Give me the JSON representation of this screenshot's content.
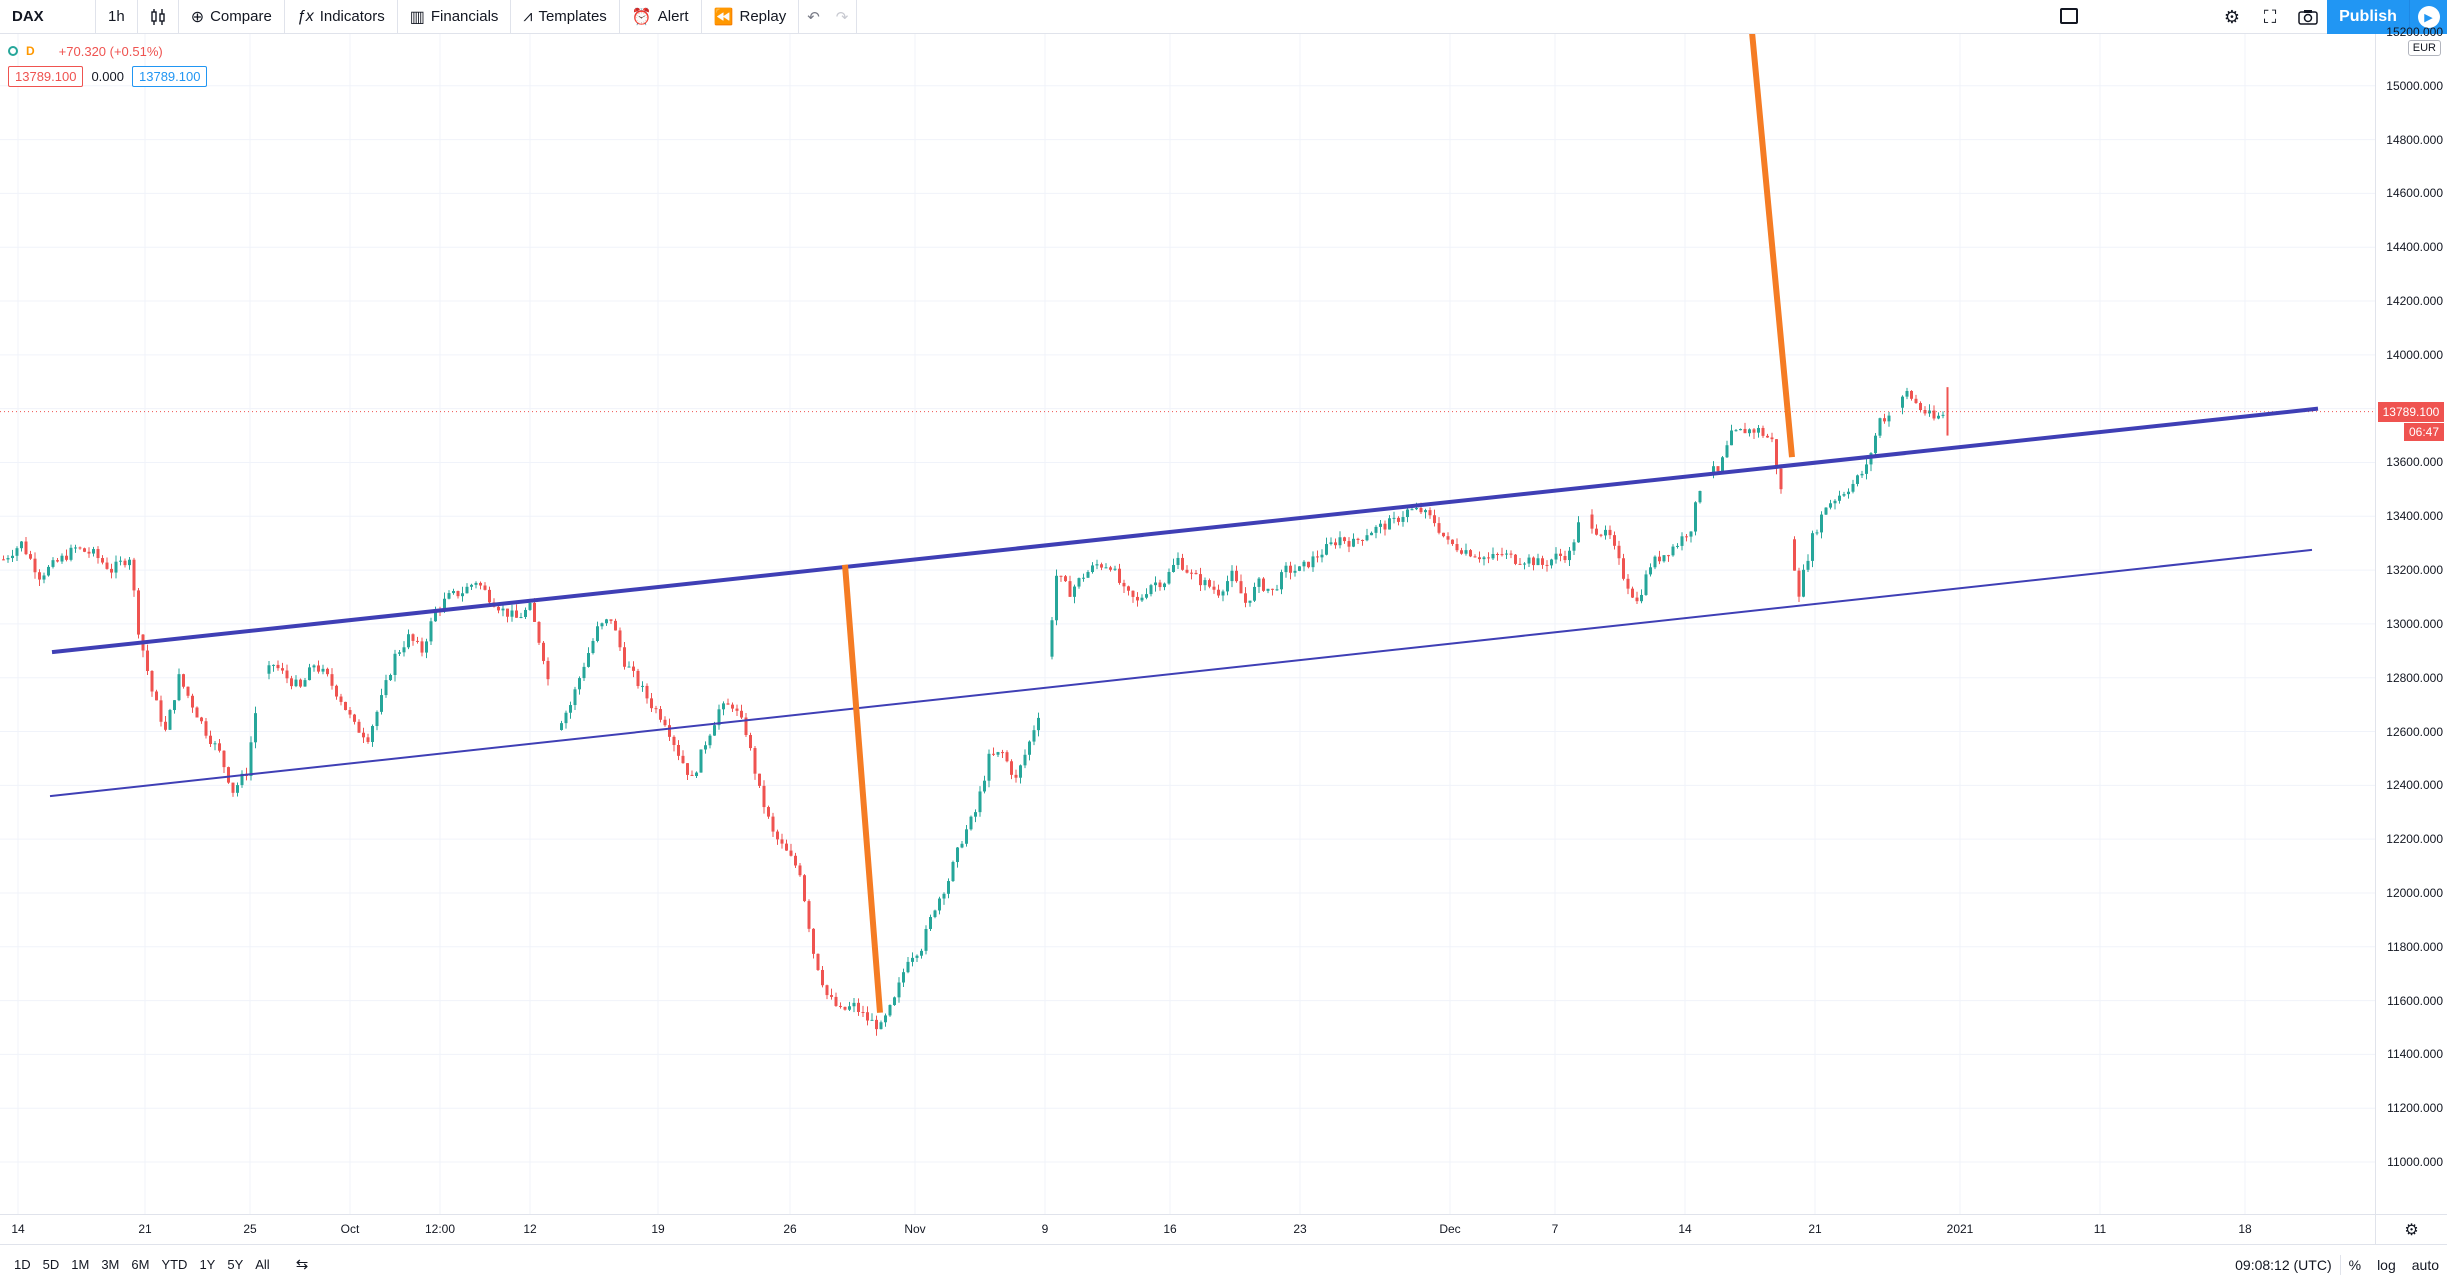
{
  "topbar": {
    "symbol": "DAX",
    "interval": "1h",
    "compare": "Compare",
    "indicators": "Indicators",
    "financials": "Financials",
    "templates": "Templates",
    "alert": "Alert",
    "replay": "Replay",
    "publish": "Publish"
  },
  "legend": {
    "interval_badge": "D",
    "change": "+70.320 (+0.51%)",
    "bid": "13789.100",
    "spread": "0.000",
    "ask": "13789.100"
  },
  "price_axis": {
    "currency": "EUR",
    "current_price": "13789.100",
    "countdown": "06:47",
    "labels": [
      "15200.000",
      "15000.000",
      "14800.000",
      "14600.000",
      "14400.000",
      "14200.000",
      "14000.000",
      "13800.000",
      "13600.000",
      "13400.000",
      "13200.000",
      "13000.000",
      "12800.000",
      "12600.000",
      "12400.000",
      "12200.000",
      "12000.000",
      "11800.000",
      "11600.000",
      "11400.000",
      "11200.000",
      "11000.000"
    ]
  },
  "time_axis": {
    "labels": [
      "14",
      "21",
      "25",
      "Oct",
      "12:00",
      "12",
      "19",
      "26",
      "Nov",
      "9",
      "16",
      "23",
      "Dec",
      "7",
      "14",
      "21",
      "2021",
      "11",
      "18"
    ]
  },
  "bottombar": {
    "ranges": [
      "1D",
      "5D",
      "1M",
      "3M",
      "6M",
      "YTD",
      "1Y",
      "5Y",
      "All"
    ],
    "clock": "09:08:12 (UTC)",
    "percent": "%",
    "log": "log",
    "auto": "auto"
  },
  "colors": {
    "up": "#26a69a",
    "down": "#ef5350",
    "trendline": "#3f3fb5",
    "measure": "#f57c24",
    "accent": "#2196f3"
  },
  "chart_data": {
    "type": "candlestick",
    "symbol": "DAX",
    "ylim": [
      11000,
      15200
    ],
    "current_price": 13789.1,
    "close_path": [
      [
        0,
        13240
      ],
      [
        4,
        13300
      ],
      [
        8,
        13180
      ],
      [
        12,
        13230
      ],
      [
        16,
        13280
      ],
      [
        20,
        13260
      ],
      [
        24,
        13200
      ],
      [
        28,
        13250
      ],
      [
        30,
        12980
      ],
      [
        33,
        12750
      ],
      [
        36,
        12600
      ],
      [
        39,
        12800
      ],
      [
        42,
        12700
      ],
      [
        45,
        12600
      ],
      [
        48,
        12520
      ],
      [
        51,
        12380
      ],
      [
        54,
        12450
      ],
      [
        57,
        12780
      ],
      [
        60,
        12850
      ],
      [
        63,
        12800
      ],
      [
        66,
        12760
      ],
      [
        69,
        12850
      ],
      [
        72,
        12800
      ],
      [
        75,
        12720
      ],
      [
        78,
        12620
      ],
      [
        81,
        12580
      ],
      [
        84,
        12720
      ],
      [
        87,
        12880
      ],
      [
        90,
        12950
      ],
      [
        93,
        12900
      ],
      [
        96,
        13050
      ],
      [
        99,
        13100
      ],
      [
        102,
        13120
      ],
      [
        105,
        13160
      ],
      [
        108,
        13100
      ],
      [
        111,
        13050
      ],
      [
        114,
        13020
      ],
      [
        117,
        13060
      ],
      [
        120,
        12880
      ],
      [
        123,
        12620
      ],
      [
        126,
        12700
      ],
      [
        129,
        12850
      ],
      [
        132,
        12980
      ],
      [
        135,
        13020
      ],
      [
        138,
        12860
      ],
      [
        141,
        12780
      ],
      [
        144,
        12700
      ],
      [
        147,
        12640
      ],
      [
        150,
        12520
      ],
      [
        153,
        12420
      ],
      [
        156,
        12560
      ],
      [
        159,
        12680
      ],
      [
        162,
        12700
      ],
      [
        165,
        12600
      ],
      [
        168,
        12380
      ],
      [
        171,
        12220
      ],
      [
        174,
        12150
      ],
      [
        177,
        12080
      ],
      [
        180,
        11780
      ],
      [
        183,
        11620
      ],
      [
        186,
        11560
      ],
      [
        189,
        11580
      ],
      [
        192,
        11530
      ],
      [
        195,
        11500
      ],
      [
        198,
        11600
      ],
      [
        201,
        11760
      ],
      [
        204,
        11800
      ],
      [
        207,
        11950
      ],
      [
        210,
        12050
      ],
      [
        213,
        12200
      ],
      [
        216,
        12300
      ],
      [
        219,
        12500
      ],
      [
        222,
        12520
      ],
      [
        225,
        12420
      ],
      [
        228,
        12560
      ],
      [
        231,
        12720
      ],
      [
        234,
        13180
      ],
      [
        237,
        13120
      ],
      [
        240,
        13180
      ],
      [
        243,
        13220
      ],
      [
        246,
        13220
      ],
      [
        249,
        13120
      ],
      [
        252,
        13080
      ],
      [
        255,
        13150
      ],
      [
        258,
        13160
      ],
      [
        261,
        13240
      ],
      [
        264,
        13180
      ],
      [
        267,
        13150
      ],
      [
        270,
        13120
      ],
      [
        273,
        13180
      ],
      [
        276,
        13080
      ],
      [
        279,
        13150
      ],
      [
        282,
        13120
      ],
      [
        285,
        13200
      ],
      [
        288,
        13200
      ],
      [
        291,
        13240
      ],
      [
        294,
        13280
      ],
      [
        297,
        13320
      ],
      [
        300,
        13300
      ],
      [
        303,
        13340
      ],
      [
        306,
        13360
      ],
      [
        309,
        13380
      ],
      [
        312,
        13420
      ],
      [
        315,
        13420
      ],
      [
        318,
        13380
      ],
      [
        321,
        13300
      ],
      [
        324,
        13280
      ],
      [
        327,
        13260
      ],
      [
        330,
        13240
      ],
      [
        333,
        13260
      ],
      [
        336,
        13240
      ],
      [
        339,
        13240
      ],
      [
        342,
        13220
      ],
      [
        345,
        13250
      ],
      [
        348,
        13260
      ],
      [
        351,
        13420
      ],
      [
        354,
        13350
      ],
      [
        357,
        13320
      ],
      [
        360,
        13180
      ],
      [
        363,
        13080
      ],
      [
        366,
        13220
      ],
      [
        369,
        13260
      ],
      [
        372,
        13300
      ],
      [
        375,
        13360
      ],
      [
        378,
        13580
      ],
      [
        381,
        13560
      ],
      [
        384,
        13700
      ],
      [
        387,
        13720
      ],
      [
        390,
        13720
      ],
      [
        393,
        13680
      ],
      [
        396,
        13400
      ],
      [
        399,
        13120
      ],
      [
        402,
        13320
      ],
      [
        405,
        13440
      ],
      [
        408,
        13480
      ],
      [
        411,
        13520
      ],
      [
        414,
        13580
      ],
      [
        417,
        13760
      ],
      [
        420,
        13780
      ],
      [
        423,
        13860
      ],
      [
        426,
        13800
      ],
      [
        429,
        13760
      ],
      [
        432,
        13789.1
      ]
    ]
  }
}
